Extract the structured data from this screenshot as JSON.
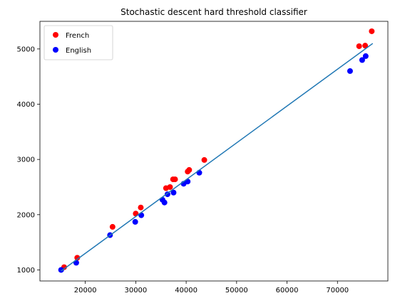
{
  "chart_data": {
    "type": "scatter",
    "title": "Stochastic descent hard threshold classifier",
    "xlabel": "",
    "ylabel": "",
    "xlim": [
      11000,
      80000
    ],
    "ylim": [
      800,
      5500
    ],
    "xticks": [
      20000,
      30000,
      40000,
      50000,
      60000,
      70000
    ],
    "yticks": [
      1000,
      2000,
      3000,
      4000,
      5000
    ],
    "x_tick_labels": [
      "20000",
      "30000",
      "40000",
      "50000",
      "60000",
      "70000"
    ],
    "y_tick_labels": [
      "1000",
      "2000",
      "3000",
      "4000",
      "5000"
    ],
    "grid": false,
    "legend_position": "top-left",
    "series": [
      {
        "name": "French",
        "color": "#ff0000",
        "points": [
          {
            "x": 15800,
            "y": 1050
          },
          {
            "x": 18400,
            "y": 1220
          },
          {
            "x": 25400,
            "y": 1780
          },
          {
            "x": 30000,
            "y": 2020
          },
          {
            "x": 31000,
            "y": 2130
          },
          {
            "x": 36000,
            "y": 2480
          },
          {
            "x": 36800,
            "y": 2500
          },
          {
            "x": 37400,
            "y": 2640
          },
          {
            "x": 37800,
            "y": 2640
          },
          {
            "x": 40300,
            "y": 2780
          },
          {
            "x": 40600,
            "y": 2810
          },
          {
            "x": 43600,
            "y": 2990
          },
          {
            "x": 74300,
            "y": 5050
          },
          {
            "x": 75500,
            "y": 5060
          },
          {
            "x": 76800,
            "y": 5320
          }
        ]
      },
      {
        "name": "English",
        "color": "#0000ff",
        "points": [
          {
            "x": 15200,
            "y": 1000
          },
          {
            "x": 18200,
            "y": 1130
          },
          {
            "x": 24900,
            "y": 1630
          },
          {
            "x": 29900,
            "y": 1870
          },
          {
            "x": 31100,
            "y": 1990
          },
          {
            "x": 35300,
            "y": 2270
          },
          {
            "x": 35700,
            "y": 2220
          },
          {
            "x": 36300,
            "y": 2370
          },
          {
            "x": 37500,
            "y": 2400
          },
          {
            "x": 39500,
            "y": 2560
          },
          {
            "x": 40300,
            "y": 2600
          },
          {
            "x": 42600,
            "y": 2760
          },
          {
            "x": 72500,
            "y": 4600
          },
          {
            "x": 74900,
            "y": 4800
          },
          {
            "x": 75600,
            "y": 4870
          }
        ]
      }
    ],
    "fit_line": {
      "color": "#1f77b4",
      "x0": 15200,
      "y0": 980,
      "x1": 77000,
      "y1": 5100
    }
  }
}
